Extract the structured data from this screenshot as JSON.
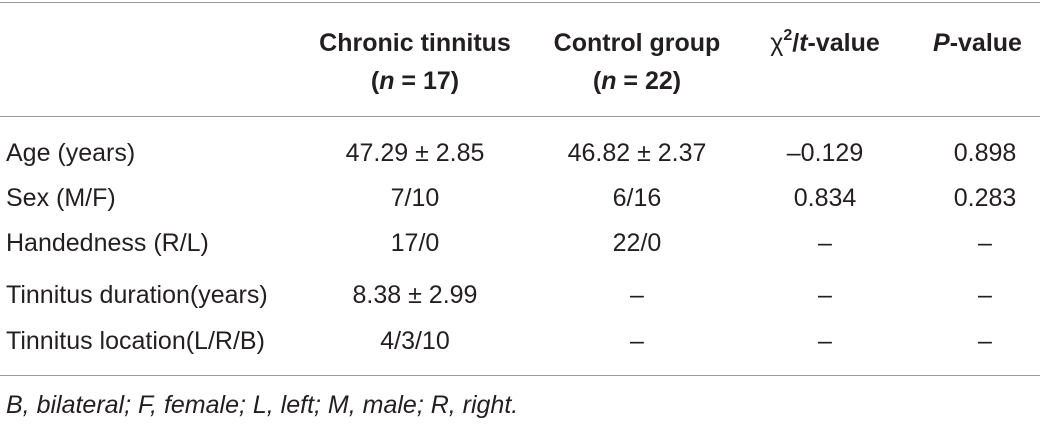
{
  "table": {
    "headers": [
      {
        "line1": "Chronic tinnitus",
        "n_prefix": "(",
        "n_var": "n",
        "n_rest": " = 17)"
      },
      {
        "line1": "Control group",
        "n_prefix": "(",
        "n_var": "n",
        "n_rest": " = 22)"
      },
      {
        "chi": "χ",
        "sup": "2",
        "slash": "/",
        "t": "t",
        "rest": "-value"
      },
      {
        "p": "P",
        "rest": "-value"
      }
    ],
    "rows": [
      {
        "label": "Age (years)",
        "cells": [
          "47.29 ± 2.85",
          "46.82 ± 2.37",
          "–0.129",
          "0.898"
        ]
      },
      {
        "label": "Sex (M/F)",
        "cells": [
          "7/10",
          "6/16",
          "0.834",
          "0.283"
        ]
      },
      {
        "label": "Handedness (R/L)",
        "cells": [
          "17/0",
          "22/0",
          "–",
          "–"
        ]
      },
      {
        "label": "Tinnitus duration(years)",
        "cells": [
          "8.38 ± 2.99",
          "–",
          "–",
          "–"
        ]
      },
      {
        "label": "Tinnitus location(L/R/B)",
        "cells": [
          "4/3/10",
          "–",
          "–",
          "–"
        ]
      }
    ],
    "footnote": "B, bilateral; F, female; L, left; M, male; R, right."
  }
}
